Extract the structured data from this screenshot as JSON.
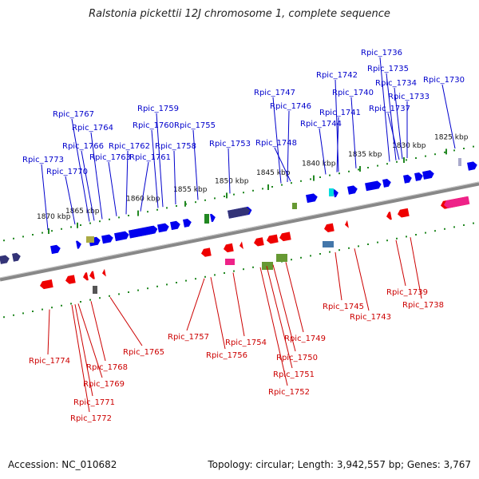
{
  "title": "Ralstonia pickettii 12J chromosome 1, complete sequence",
  "footer": {
    "accession": "Accession: NC_010682",
    "summary": "Topology: circular; Length: 3,942,557 bp; Genes: 3,767"
  },
  "colors": {
    "forward": "#0000ee",
    "reverse": "#ee0000",
    "backbone": "#888888",
    "tick": "#228822",
    "top_label": "#0000cc",
    "bottom_label": "#cc0000"
  },
  "scale_labels": [
    "1870 kbp",
    "1865 kbp",
    "1860 kbp",
    "1855 kbp",
    "1850 kbp",
    "1845 kbp",
    "1840 kbp",
    "1835 kbp",
    "1830 kbp",
    "1825 kbp"
  ],
  "top_genes": [
    "Rpic_1773",
    "Rpic_1770",
    "Rpic_1767",
    "Rpic_1766",
    "Rpic_1764",
    "Rpic_1763",
    "Rpic_1762",
    "Rpic_1761",
    "Rpic_1760",
    "Rpic_1759",
    "Rpic_1758",
    "Rpic_1755",
    "Rpic_1753",
    "Rpic_1748",
    "Rpic_1747",
    "Rpic_1746",
    "Rpic_1744",
    "Rpic_1742",
    "Rpic_1741",
    "Rpic_1740",
    "Rpic_1737",
    "Rpic_1736",
    "Rpic_1735",
    "Rpic_1734",
    "Rpic_1733",
    "Rpic_1730"
  ],
  "bottom_genes": [
    "Rpic_1774",
    "Rpic_1772",
    "Rpic_1771",
    "Rpic_1769",
    "Rpic_1768",
    "Rpic_1765",
    "Rpic_1757",
    "Rpic_1756",
    "Rpic_1754",
    "Rpic_1752",
    "Rpic_1751",
    "Rpic_1750",
    "Rpic_1749",
    "Rpic_1745",
    "Rpic_1743",
    "Rpic_1739",
    "Rpic_1738"
  ]
}
